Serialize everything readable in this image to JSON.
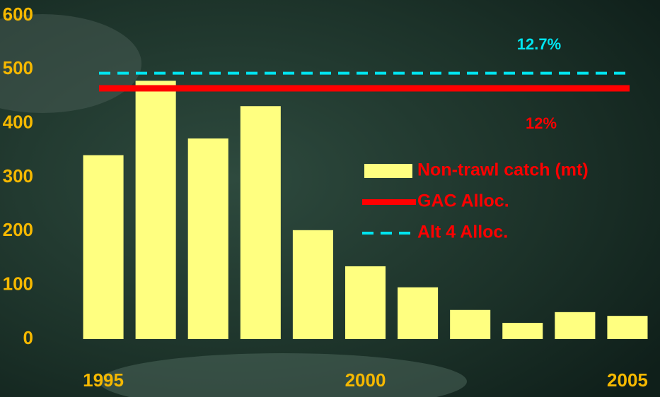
{
  "chart_data": {
    "type": "bar",
    "categories": [
      "1995",
      null,
      null,
      null,
      null,
      "2000",
      null,
      null,
      null,
      null,
      "2005"
    ],
    "series": [
      {
        "name": "Non-trawl catch (mt)",
        "color": "#ffff80",
        "values": [
          341,
          479,
          372,
          432,
          202,
          135,
          96,
          54,
          30,
          50,
          43
        ]
      }
    ],
    "reference_lines": [
      {
        "name": "GAC Alloc.",
        "color": "#ff0000",
        "value": 465,
        "label": "12%",
        "dashed": false
      },
      {
        "name": "Alt 4 Alloc.",
        "color": "#00e5f0",
        "value": 493,
        "label": "12.7%",
        "dashed": true
      }
    ],
    "ylim": [
      0,
      600
    ],
    "yticks": [
      0,
      100,
      200,
      300,
      400,
      500,
      600
    ],
    "grid": false
  }
}
